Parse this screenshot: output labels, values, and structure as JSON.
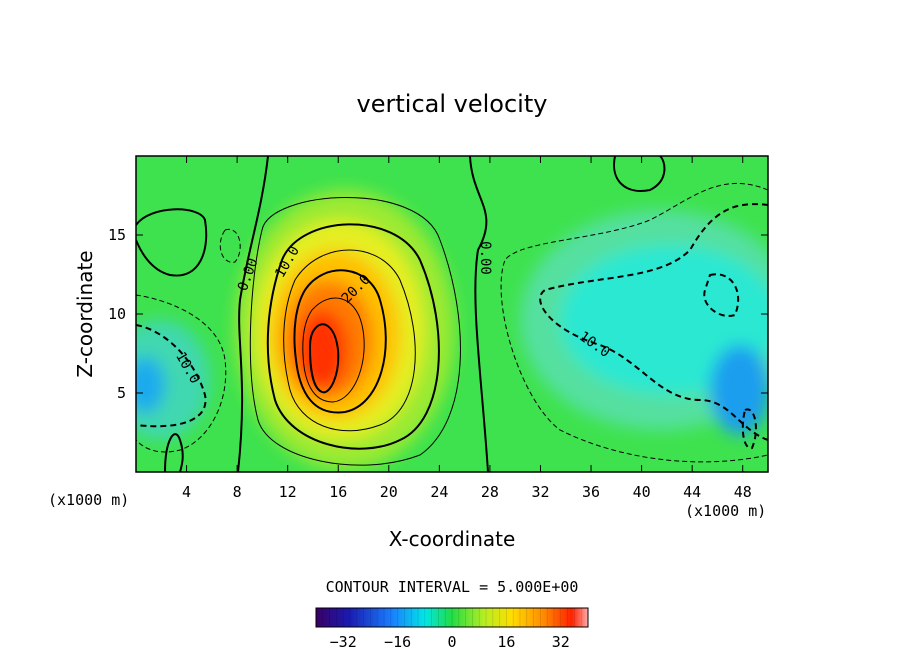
{
  "chart_data": {
    "type": "heatmap",
    "title": "vertical velocity",
    "xlabel": "X-coordinate",
    "ylabel": "Z-coordinate",
    "x_unit": "(x1000 m)",
    "x_unit_right": "(x1000 m)",
    "xlim": [
      0,
      50
    ],
    "ylim": [
      0,
      20
    ],
    "xticks": [
      4,
      8,
      12,
      16,
      20,
      24,
      28,
      32,
      36,
      40,
      44,
      48
    ],
    "yticks": [
      5,
      10,
      15
    ],
    "contour_interval_text": "CONTOUR INTERVAL = 5.000E+00",
    "contour_labels": [
      "0.00",
      "10.0",
      "20.0",
      "0.00",
      "10.0",
      "10.0"
    ],
    "colorbar": {
      "range": [
        -40,
        40
      ],
      "ticks": [
        -32,
        -16,
        0,
        16,
        32
      ],
      "tick_labels": [
        "−32",
        "−16",
        "0",
        "16",
        "32"
      ]
    },
    "grid": false,
    "features": [
      {
        "kind": "updraft_max",
        "x": 15,
        "z": 7.5,
        "value": 35
      },
      {
        "kind": "downdraft_min",
        "x": 47,
        "z": 5,
        "value": -16
      },
      {
        "kind": "downdraft_min",
        "x": 1,
        "z": 6,
        "value": -14
      }
    ]
  }
}
